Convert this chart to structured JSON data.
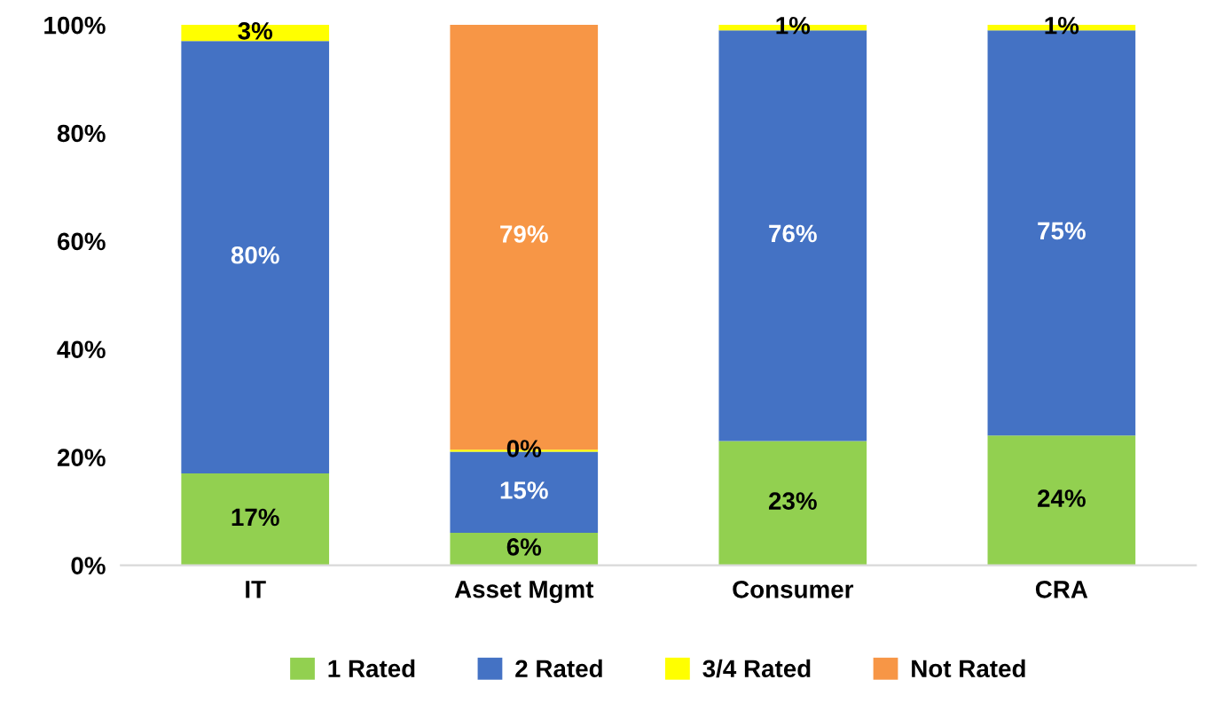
{
  "chart_data": {
    "type": "bar",
    "stacked": true,
    "categories": [
      "IT",
      "Asset Mgmt",
      "Consumer",
      "CRA"
    ],
    "series": [
      {
        "name": "1 Rated",
        "color": "#92d050",
        "values": [
          17,
          6,
          23,
          24
        ],
        "value_labels": [
          "17%",
          "6%",
          "23%",
          "24%"
        ]
      },
      {
        "name": "2 Rated",
        "color": "#4472c4",
        "values": [
          80,
          15,
          76,
          75
        ],
        "value_labels": [
          "80%",
          "15%",
          "76%",
          "75%"
        ]
      },
      {
        "name": "3/4 Rated",
        "color": "#ffff00",
        "values": [
          3,
          0.4,
          1,
          1
        ],
        "value_labels": [
          "3%",
          "0%",
          "1%",
          "1%"
        ]
      },
      {
        "name": "Not Rated",
        "color": "#f79646",
        "values": [
          0,
          79,
          0,
          0
        ],
        "value_labels": [
          null,
          "79%",
          null,
          null
        ]
      }
    ],
    "ylim": [
      0,
      100
    ],
    "yticks": [
      {
        "value": 0,
        "label": "0%"
      },
      {
        "value": 20,
        "label": "20%"
      },
      {
        "value": 40,
        "label": "40%"
      },
      {
        "value": 60,
        "label": "60%"
      },
      {
        "value": 80,
        "label": "80%"
      },
      {
        "value": 100,
        "label": "100%"
      }
    ],
    "grid": false,
    "legend": "bottom"
  }
}
